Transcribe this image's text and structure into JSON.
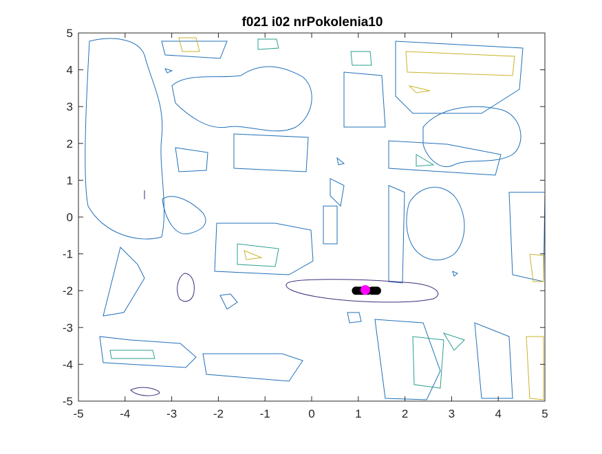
{
  "chart_data": {
    "type": "contour",
    "title": "f021 i02 nrPokolenia10",
    "xlabel": "",
    "ylabel": "",
    "xlim": [
      -5,
      5
    ],
    "ylim": [
      -5,
      5
    ],
    "xticks": [
      "-5",
      "-4",
      "-3",
      "-2",
      "-1",
      "0",
      "1",
      "2",
      "3",
      "4",
      "5"
    ],
    "yticks": [
      "5",
      "4",
      "3",
      "2",
      "1",
      "0",
      "-1",
      "-2",
      "-3",
      "-4",
      "-5"
    ],
    "grid": false,
    "population_points": [
      {
        "x": 0.95,
        "y": -2.0
      },
      {
        "x": 1.0,
        "y": -2.0
      },
      {
        "x": 1.05,
        "y": -2.0
      },
      {
        "x": 1.1,
        "y": -2.0
      },
      {
        "x": 1.15,
        "y": -2.0
      },
      {
        "x": 1.2,
        "y": -2.0
      },
      {
        "x": 1.3,
        "y": -2.0
      },
      {
        "x": 1.35,
        "y": -2.0
      },
      {
        "x": 1.4,
        "y": -2.0
      }
    ],
    "best_point": {
      "x": 1.15,
      "y": -1.98
    },
    "colors": {
      "contour_low": "#3b2a7a",
      "contour_mid": "#1f6fb8",
      "contour_teal": "#2a9d8f",
      "contour_high": "#c9b32a",
      "population": "#000000",
      "best": "#ff00ff"
    }
  }
}
